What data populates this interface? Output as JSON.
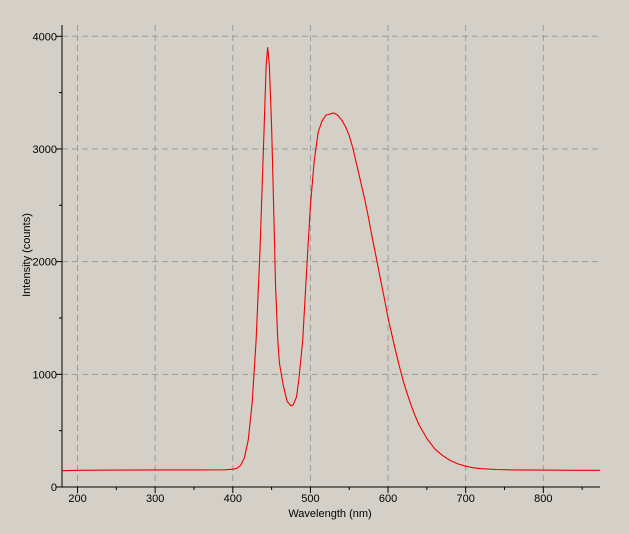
{
  "chart_data": {
    "type": "line",
    "title": "",
    "xlabel": "Wavelength (nm)",
    "ylabel": "Intensity (counts)",
    "xlim": [
      180,
      873
    ],
    "ylim": [
      0,
      4100
    ],
    "x_ticks": [
      200,
      300,
      400,
      500,
      600,
      700,
      800
    ],
    "x_tick_labels": [
      "200",
      "300",
      "400",
      "500",
      "600",
      "700",
      "800"
    ],
    "y_ticks": [
      0,
      1000,
      2000,
      3000,
      4000
    ],
    "y_tick_labels": [
      "0",
      "1000",
      "2000",
      "3000",
      "4000"
    ],
    "grid": true,
    "legend": "none",
    "colors": {
      "background": "#d4d0c8",
      "line": "#ee0000",
      "grid": "#9a9a9a",
      "axis": "#000000"
    },
    "series": [
      {
        "x": [
          180,
          200,
          250,
          300,
          350,
          390,
          400,
          405,
          410,
          415,
          420,
          425,
          430,
          435,
          440,
          443,
          445,
          447,
          450,
          453,
          455,
          458,
          460,
          465,
          470,
          475,
          478,
          482,
          485,
          490,
          495,
          500,
          505,
          510,
          515,
          520,
          525,
          530,
          535,
          540,
          545,
          550,
          555,
          560,
          565,
          570,
          575,
          580,
          585,
          590,
          595,
          600,
          605,
          610,
          615,
          620,
          625,
          630,
          635,
          640,
          650,
          660,
          670,
          680,
          690,
          700,
          710,
          720,
          740,
          760,
          800,
          840,
          873
        ],
        "y": [
          145,
          148,
          150,
          152,
          152,
          153,
          158,
          165,
          190,
          260,
          420,
          750,
          1300,
          2100,
          3100,
          3750,
          3900,
          3750,
          3200,
          2400,
          1800,
          1300,
          1100,
          900,
          760,
          720,
          730,
          800,
          950,
          1300,
          1900,
          2500,
          2900,
          3150,
          3250,
          3300,
          3310,
          3320,
          3300,
          3260,
          3200,
          3120,
          3000,
          2850,
          2700,
          2550,
          2380,
          2200,
          2030,
          1850,
          1680,
          1500,
          1350,
          1200,
          1060,
          930,
          820,
          720,
          630,
          550,
          430,
          340,
          280,
          235,
          205,
          185,
          170,
          162,
          155,
          152,
          150,
          148,
          148
        ]
      }
    ]
  }
}
